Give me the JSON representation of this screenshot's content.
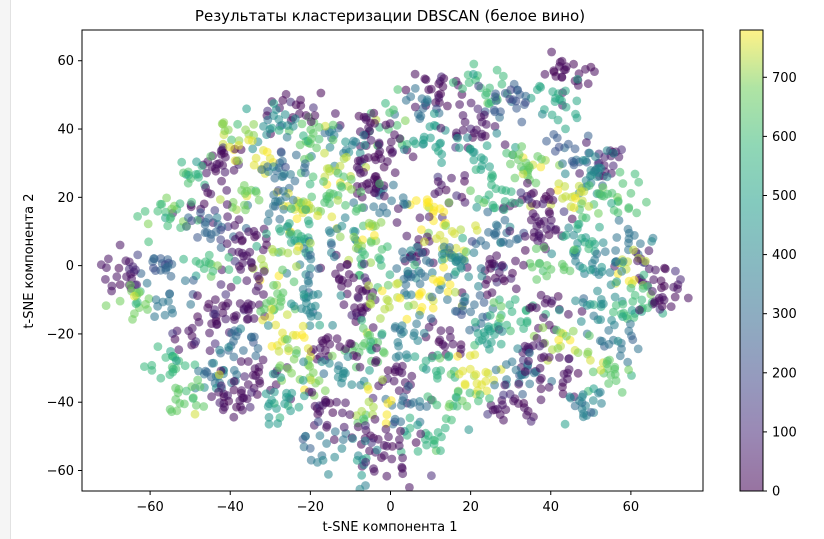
{
  "chart_data": {
    "type": "scatter",
    "title": "Результаты кластеризации DBSCAN (белое вино)",
    "xlabel": "t-SNE компонента 1",
    "ylabel": "t-SNE компонента 2",
    "xlim": [
      -77,
      78
    ],
    "ylim": [
      -66,
      69
    ],
    "x_ticks": [
      "−60",
      "−40",
      "−20",
      "0",
      "20",
      "40",
      "60"
    ],
    "x_tick_values": [
      -60,
      -40,
      -20,
      0,
      20,
      40,
      60
    ],
    "y_ticks": [
      "−60",
      "−40",
      "−20",
      "0",
      "20",
      "40",
      "60"
    ],
    "y_tick_values": [
      -60,
      -40,
      -20,
      0,
      20,
      40,
      60
    ],
    "grid": false,
    "colormap": "viridis",
    "point_alpha": 0.55,
    "colorbar": {
      "min": 0,
      "max": 780,
      "ticks": [
        "0",
        "100",
        "200",
        "300",
        "400",
        "500",
        "600",
        "700"
      ],
      "tick_values": [
        0,
        100,
        200,
        300,
        400,
        500,
        600,
        700
      ]
    },
    "clusters": [
      {
        "x": 44,
        "y": 57,
        "label": 20
      },
      {
        "x": 42,
        "y": 48,
        "label": 520
      },
      {
        "x": 12,
        "y": 52,
        "label": 10
      },
      {
        "x": 23,
        "y": 53,
        "label": 590
      },
      {
        "x": 30,
        "y": 49,
        "label": 250
      },
      {
        "x": 8,
        "y": 47,
        "label": 320
      },
      {
        "x": 0,
        "y": 42,
        "label": 620
      },
      {
        "x": -6,
        "y": 40,
        "label": 30
      },
      {
        "x": -12,
        "y": 36,
        "label": 370
      },
      {
        "x": -19,
        "y": 38,
        "label": 650
      },
      {
        "x": -24,
        "y": 44,
        "label": 15
      },
      {
        "x": -30,
        "y": 40,
        "label": 430
      },
      {
        "x": -38,
        "y": 38,
        "label": 700
      },
      {
        "x": -42,
        "y": 30,
        "label": 25
      },
      {
        "x": -50,
        "y": 27,
        "label": 560
      },
      {
        "x": -34,
        "y": 30,
        "label": 760
      },
      {
        "x": -26,
        "y": 28,
        "label": 300
      },
      {
        "x": -12,
        "y": 28,
        "label": 740
      },
      {
        "x": -2,
        "y": 33,
        "label": 20
      },
      {
        "x": 10,
        "y": 36,
        "label": 480
      },
      {
        "x": 20,
        "y": 40,
        "label": 35
      },
      {
        "x": 23,
        "y": 31,
        "label": 500
      },
      {
        "x": 34,
        "y": 30,
        "label": 660
      },
      {
        "x": 44,
        "y": 33,
        "label": 250
      },
      {
        "x": 54,
        "y": 31,
        "label": 45
      },
      {
        "x": 50,
        "y": 27,
        "label": 400
      },
      {
        "x": 58,
        "y": 20,
        "label": 620
      },
      {
        "x": 44,
        "y": 20,
        "label": 740
      },
      {
        "x": 34,
        "y": 18,
        "label": 25
      },
      {
        "x": 26,
        "y": 21,
        "label": 560
      },
      {
        "x": 14,
        "y": 22,
        "label": 40
      },
      {
        "x": 10,
        "y": 16,
        "label": 780
      },
      {
        "x": -2,
        "y": 18,
        "label": 330
      },
      {
        "x": -5,
        "y": 24,
        "label": 20
      },
      {
        "x": -14,
        "y": 20,
        "label": 620
      },
      {
        "x": -20,
        "y": 16,
        "label": 760
      },
      {
        "x": -28,
        "y": 17,
        "label": 350
      },
      {
        "x": -36,
        "y": 20,
        "label": 680
      },
      {
        "x": -46,
        "y": 18,
        "label": 40
      },
      {
        "x": -56,
        "y": 16,
        "label": 600
      },
      {
        "x": -44,
        "y": 10,
        "label": 290
      },
      {
        "x": -34,
        "y": 8,
        "label": 30
      },
      {
        "x": -24,
        "y": 9,
        "label": 530
      },
      {
        "x": -14,
        "y": 8,
        "label": 380
      },
      {
        "x": -6,
        "y": 8,
        "label": 700
      },
      {
        "x": 6,
        "y": 6,
        "label": 30
      },
      {
        "x": 16,
        "y": 8,
        "label": 750
      },
      {
        "x": 28,
        "y": 8,
        "label": 300
      },
      {
        "x": 38,
        "y": 10,
        "label": 35
      },
      {
        "x": 48,
        "y": 8,
        "label": 520
      },
      {
        "x": 60,
        "y": 6,
        "label": 330
      },
      {
        "x": 66,
        "y": -4,
        "label": 45
      },
      {
        "x": 60,
        "y": -2,
        "label": 740
      },
      {
        "x": 52,
        "y": 0,
        "label": 380
      },
      {
        "x": 40,
        "y": 0,
        "label": 650
      },
      {
        "x": 26,
        "y": -3,
        "label": 25
      },
      {
        "x": 16,
        "y": 0,
        "label": 420
      },
      {
        "x": 6,
        "y": -2,
        "label": 310
      },
      {
        "x": -4,
        "y": 0,
        "label": 600
      },
      {
        "x": -12,
        "y": -2,
        "label": 20
      },
      {
        "x": -20,
        "y": 0,
        "label": 360
      },
      {
        "x": -28,
        "y": 0,
        "label": 720
      },
      {
        "x": -36,
        "y": -2,
        "label": 40
      },
      {
        "x": -46,
        "y": 0,
        "label": 590
      },
      {
        "x": -58,
        "y": 0,
        "label": 280
      },
      {
        "x": -66,
        "y": -2,
        "label": 35
      },
      {
        "x": -64,
        "y": -10,
        "label": 680
      },
      {
        "x": -54,
        "y": -12,
        "label": 340
      },
      {
        "x": -44,
        "y": -12,
        "label": 20
      },
      {
        "x": -36,
        "y": -14,
        "label": 30
      },
      {
        "x": -28,
        "y": -10,
        "label": 650
      },
      {
        "x": -20,
        "y": -12,
        "label": 400
      },
      {
        "x": -8,
        "y": -12,
        "label": 30
      },
      {
        "x": 0,
        "y": -10,
        "label": 730
      },
      {
        "x": 10,
        "y": -10,
        "label": 780
      },
      {
        "x": 20,
        "y": -12,
        "label": 300
      },
      {
        "x": 30,
        "y": -14,
        "label": 560
      },
      {
        "x": 40,
        "y": -12,
        "label": 25
      },
      {
        "x": 50,
        "y": -14,
        "label": 420
      },
      {
        "x": 60,
        "y": -12,
        "label": 600
      },
      {
        "x": 68,
        "y": -10,
        "label": 35
      },
      {
        "x": 56,
        "y": -22,
        "label": 330
      },
      {
        "x": 44,
        "y": -22,
        "label": 700
      },
      {
        "x": 34,
        "y": -24,
        "label": 40
      },
      {
        "x": 24,
        "y": -22,
        "label": 500
      },
      {
        "x": 14,
        "y": -22,
        "label": 30
      },
      {
        "x": 4,
        "y": -20,
        "label": 370
      },
      {
        "x": -6,
        "y": -22,
        "label": 640
      },
      {
        "x": -16,
        "y": -24,
        "label": 20
      },
      {
        "x": -26,
        "y": -22,
        "label": 760
      },
      {
        "x": -38,
        "y": -22,
        "label": 300
      },
      {
        "x": -48,
        "y": -22,
        "label": 35
      },
      {
        "x": -56,
        "y": -28,
        "label": 580
      },
      {
        "x": -44,
        "y": -32,
        "label": 330
      },
      {
        "x": -32,
        "y": -32,
        "label": 25
      },
      {
        "x": -22,
        "y": -30,
        "label": 690
      },
      {
        "x": -12,
        "y": -32,
        "label": 410
      },
      {
        "x": 0,
        "y": -32,
        "label": 30
      },
      {
        "x": 12,
        "y": -30,
        "label": 560
      },
      {
        "x": 22,
        "y": -32,
        "label": 760
      },
      {
        "x": 32,
        "y": -32,
        "label": 340
      },
      {
        "x": 42,
        "y": -32,
        "label": 30
      },
      {
        "x": 54,
        "y": -32,
        "label": 640
      },
      {
        "x": 48,
        "y": -40,
        "label": 380
      },
      {
        "x": 30,
        "y": -40,
        "label": 25
      },
      {
        "x": 18,
        "y": -40,
        "label": 600
      },
      {
        "x": 6,
        "y": -42,
        "label": 310
      },
      {
        "x": -6,
        "y": -42,
        "label": 720
      },
      {
        "x": -16,
        "y": -42,
        "label": 40
      },
      {
        "x": -28,
        "y": -40,
        "label": 470
      },
      {
        "x": -40,
        "y": -40,
        "label": 30
      },
      {
        "x": -50,
        "y": -38,
        "label": 650
      },
      {
        "x": -18,
        "y": -50,
        "label": 330
      },
      {
        "x": -6,
        "y": -50,
        "label": 20
      },
      {
        "x": 10,
        "y": -50,
        "label": 560
      },
      {
        "x": -10,
        "y": -57,
        "label": 400
      },
      {
        "x": 0,
        "y": -56,
        "label": 30
      }
    ]
  }
}
